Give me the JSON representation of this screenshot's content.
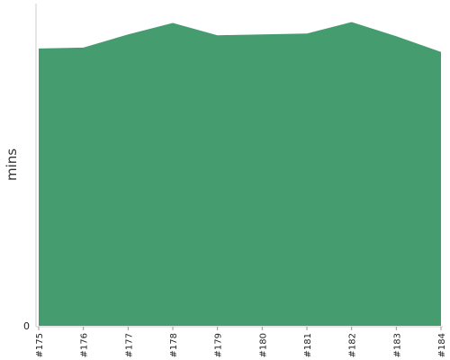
{
  "chart_data": {
    "type": "area",
    "title": "",
    "xlabel": "",
    "ylabel": "mins",
    "categories": [
      "#175",
      "#176",
      "#177",
      "#178",
      "#179",
      "#180",
      "#181",
      "#182",
      "#183",
      "#184"
    ],
    "series": [
      {
        "values": [
          31.5,
          31.6,
          33.1,
          34.4,
          33.0,
          33.1,
          33.2,
          34.5,
          32.9,
          31.1
        ],
        "color": "#459c6e"
      }
    ],
    "y_ticks": [
      0
    ],
    "ylim": [
      0,
      36.6
    ],
    "grid": false,
    "legend": "none"
  }
}
